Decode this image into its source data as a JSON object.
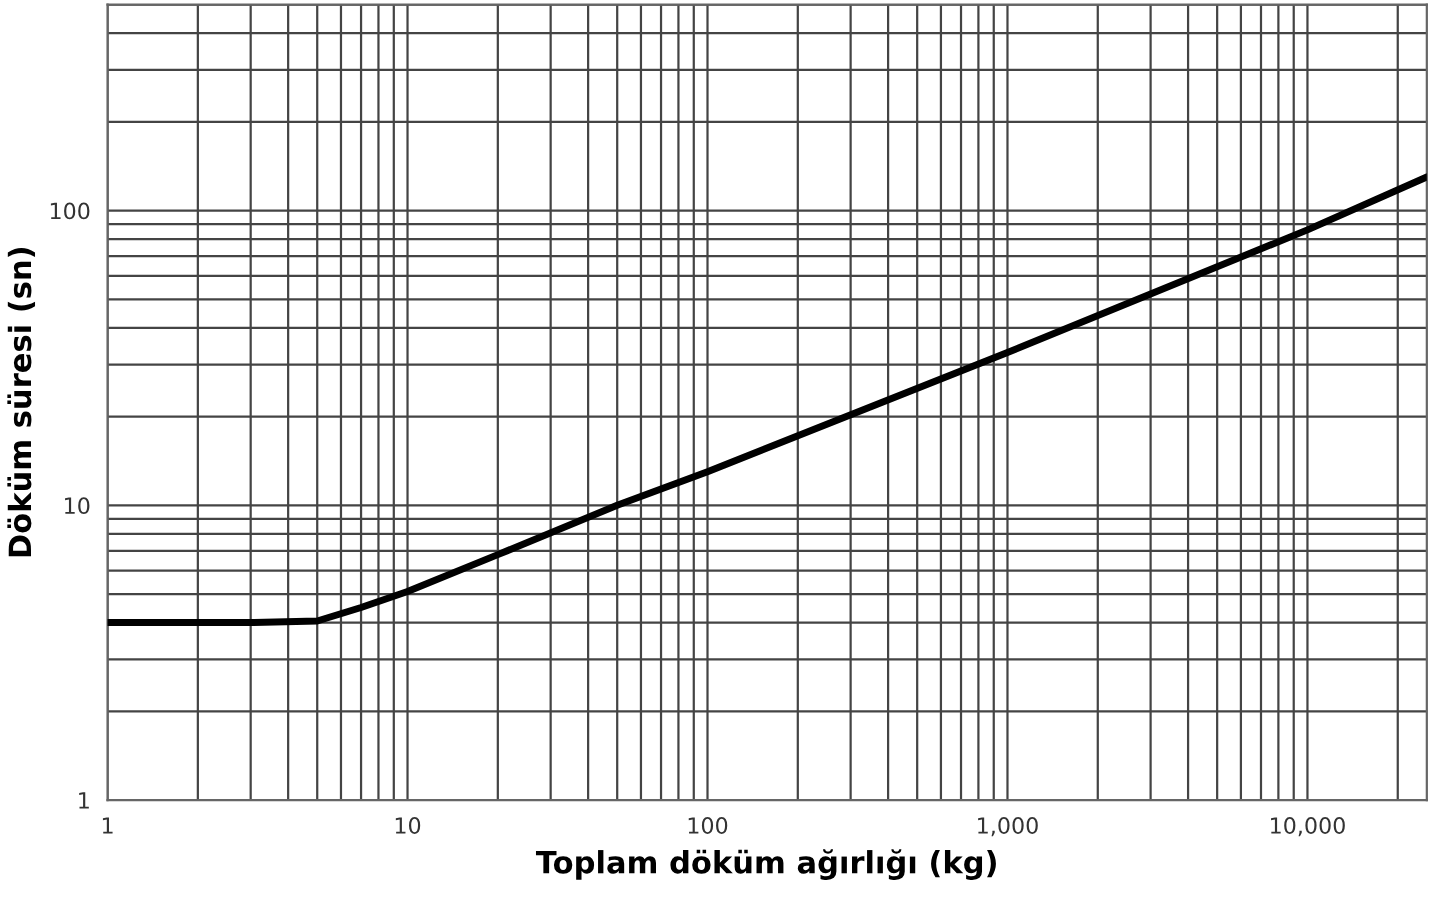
{
  "chart_data": {
    "type": "line",
    "xlabel": "Toplam döküm ağırlığı (kg)",
    "ylabel": "Döküm süresi (sn)",
    "log": "xy",
    "x": [
      1,
      3,
      5,
      7,
      10,
      20,
      50,
      100,
      1000,
      10000,
      25000
    ],
    "series": [
      {
        "color": "#000000",
        "values": [
          4,
          4,
          4.05,
          4.5,
          5.1,
          6.8,
          10,
          13,
          33,
          86,
          130
        ]
      }
    ],
    "xlim": [
      1,
      25000
    ],
    "ylim": [
      1,
      500
    ],
    "xticks": [
      1,
      10,
      100,
      {
        "value": 1000,
        "label": "1,000"
      },
      {
        "value": 10000,
        "label": "10,000"
      }
    ],
    "yticks": [
      1,
      10,
      100
    ],
    "grid": true,
    "marker": "none",
    "line_style": "solid"
  }
}
